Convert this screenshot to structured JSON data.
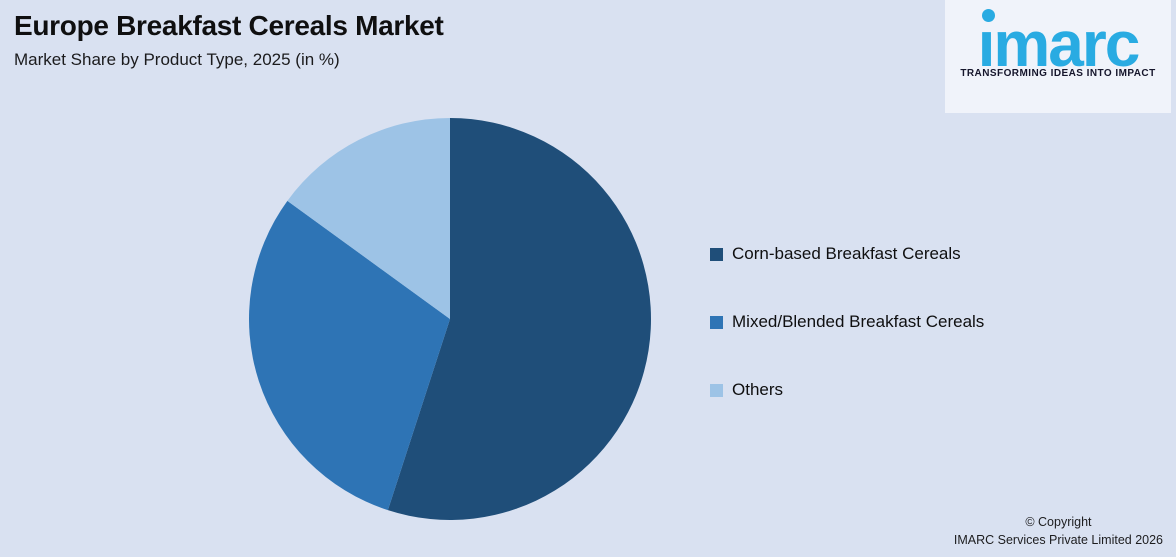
{
  "header": {
    "title": "Europe Breakfast Cereals Market",
    "subtitle": "Market Share by Product Type, 2025 (in %)"
  },
  "logo": {
    "wordmark": "imarc",
    "tagline": "TRANSFORMING IDEAS INTO IMPACT",
    "brand_color": "#29ABE2",
    "tagline_color": "#15152B"
  },
  "chart_data": {
    "type": "pie",
    "title": "Europe Breakfast Cereals Market",
    "subtitle": "Market Share by Product Type, 2025 (in %)",
    "labels": [
      "Corn-based Breakfast Cereals",
      "Mixed/Blended Breakfast Cereals",
      "Others"
    ],
    "values": [
      55,
      30,
      15
    ],
    "unit": "%",
    "colors": [
      "#1F4E79",
      "#2E74B5",
      "#9DC3E6"
    ],
    "start_angle_deg": 0,
    "direction": "clockwise",
    "legend_position": "right",
    "data_labels_shown": false
  },
  "footer": {
    "copyright_line1": "© Copyright",
    "copyright_line2": "IMARC Services Private Limited 2026"
  },
  "colors": {
    "page_background": "#D9E1F1",
    "logo_card_background": "#F0F3FA"
  }
}
